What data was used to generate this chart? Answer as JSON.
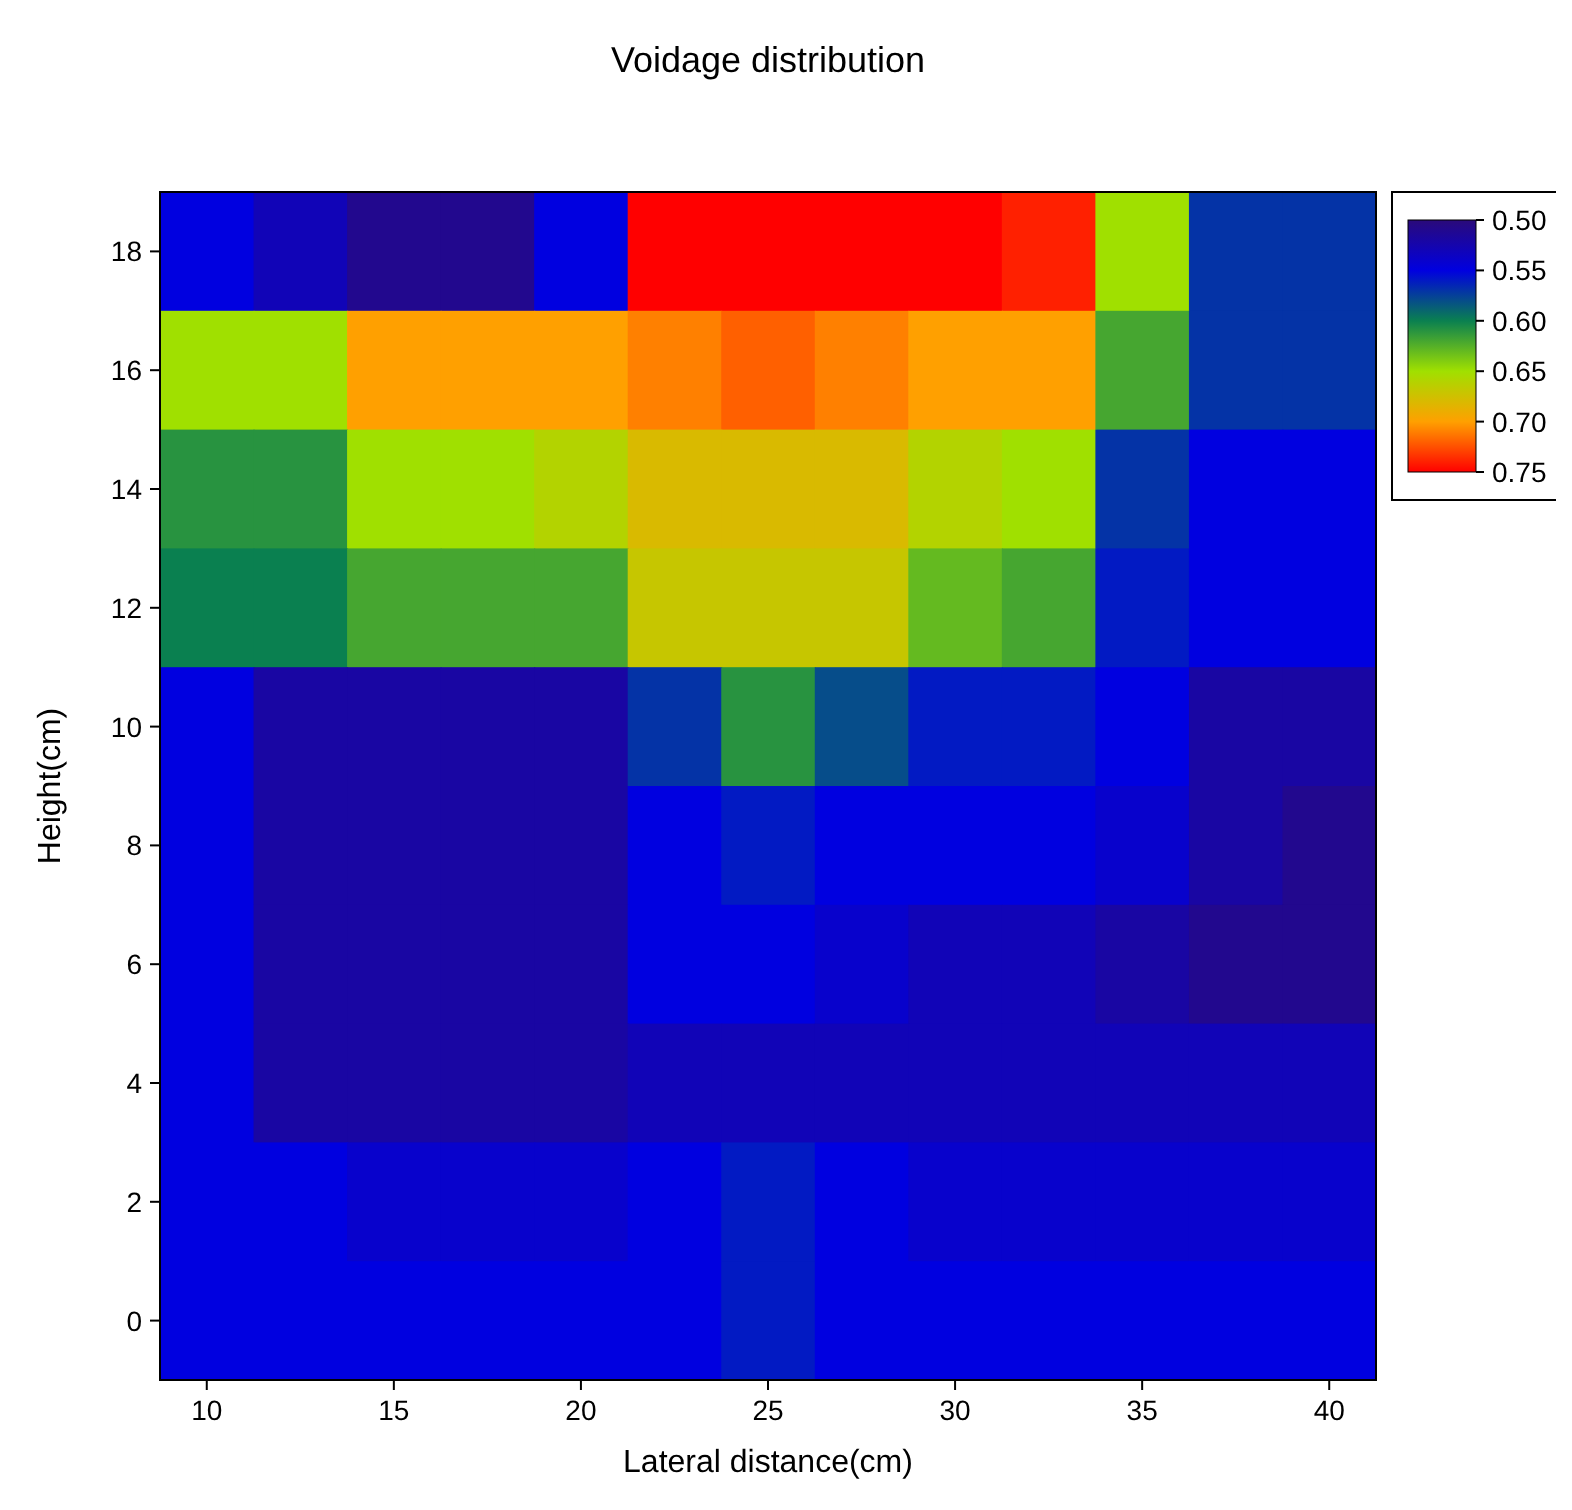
{
  "chart_data": {
    "type": "heatmap",
    "title": "Voidage distribution",
    "xlabel": "Lateral distance(cm)",
    "ylabel": "Height(cm)",
    "categories": [
      "10",
      null,
      "15",
      null,
      "20",
      null,
      "25",
      null,
      "30",
      null,
      "35",
      null,
      "40"
    ],
    "y_categories": [
      "18",
      "16",
      "14",
      "12",
      "10",
      "8",
      "6",
      "4",
      "2",
      "0"
    ],
    "cells": [
      [
        0.55,
        0.53,
        0.51,
        0.51,
        0.55,
        0.75,
        0.75,
        0.75,
        0.75,
        0.74,
        0.65,
        0.57,
        0.57
      ],
      [
        0.65,
        0.65,
        0.7,
        0.7,
        0.7,
        0.71,
        0.72,
        0.71,
        0.7,
        0.7,
        0.62,
        0.57,
        0.57
      ],
      [
        0.61,
        0.61,
        0.65,
        0.65,
        0.66,
        0.68,
        0.68,
        0.68,
        0.66,
        0.65,
        0.57,
        0.55,
        0.55
      ],
      [
        0.6,
        0.6,
        0.62,
        0.62,
        0.62,
        0.67,
        0.67,
        0.67,
        0.63,
        0.62,
        0.56,
        0.55,
        0.55
      ],
      [
        0.55,
        0.52,
        0.52,
        0.52,
        0.52,
        0.57,
        0.61,
        0.58,
        0.56,
        0.56,
        0.55,
        0.52,
        0.52
      ],
      [
        0.55,
        0.52,
        0.52,
        0.52,
        0.52,
        0.55,
        0.56,
        0.55,
        0.55,
        0.55,
        0.54,
        0.52,
        0.51
      ],
      [
        0.55,
        0.52,
        0.52,
        0.52,
        0.52,
        0.55,
        0.55,
        0.54,
        0.53,
        0.53,
        0.52,
        0.51,
        0.51
      ],
      [
        0.55,
        0.52,
        0.52,
        0.52,
        0.52,
        0.53,
        0.53,
        0.53,
        0.53,
        0.53,
        0.53,
        0.53,
        0.53
      ],
      [
        0.55,
        0.55,
        0.54,
        0.54,
        0.54,
        0.55,
        0.56,
        0.55,
        0.54,
        0.54,
        0.54,
        0.54,
        0.54
      ],
      [
        0.55,
        0.55,
        0.55,
        0.55,
        0.55,
        0.55,
        0.56,
        0.55,
        0.55,
        0.55,
        0.55,
        0.55,
        0.55
      ]
    ],
    "clim": [
      0.5,
      0.75
    ],
    "cticks": [
      {
        "value": 0.5,
        "label": "0.50"
      },
      {
        "value": 0.55,
        "label": "0.55"
      },
      {
        "value": 0.6,
        "label": "0.60"
      },
      {
        "value": 0.65,
        "label": "0.65"
      },
      {
        "value": 0.7,
        "label": "0.70"
      },
      {
        "value": 0.75,
        "label": "0.75"
      }
    ],
    "colors": [
      "#2a0a7a",
      "#0000e0",
      "#0a8050",
      "#a0e000",
      "#ffa000",
      "#ff0000"
    ]
  }
}
